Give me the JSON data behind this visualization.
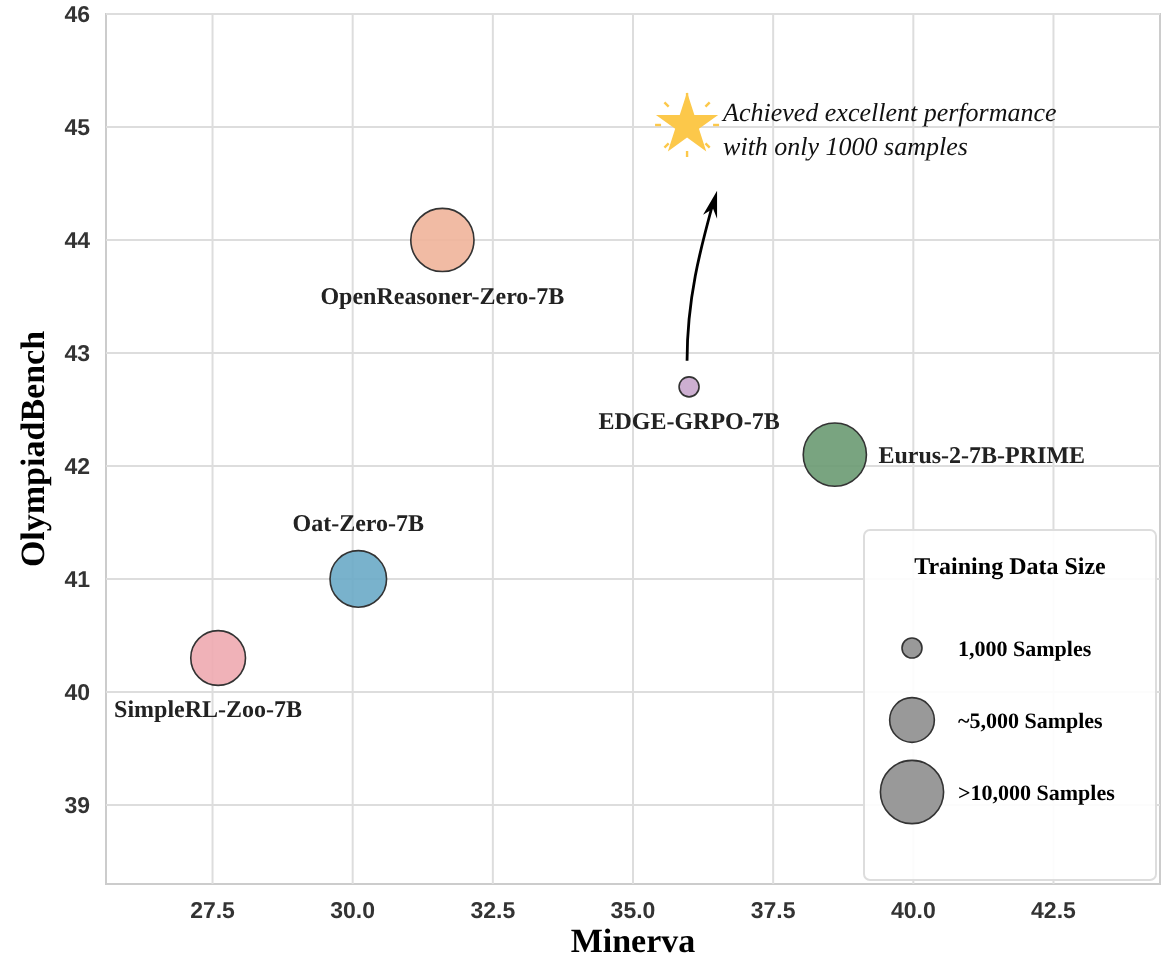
{
  "chart_data": {
    "type": "bubble",
    "xlabel": "Minerva",
    "ylabel": "OlympiadBench",
    "xlim": [
      25.6,
      44.4
    ],
    "ylim": [
      38.3,
      46
    ],
    "xticks": [
      {
        "value": 27.5,
        "label": "27.5"
      },
      {
        "value": 30,
        "label": "30.0"
      },
      {
        "value": 32.5,
        "label": "32.5"
      },
      {
        "value": 35,
        "label": "35.0"
      },
      {
        "value": 37.5,
        "label": "37.5"
      },
      {
        "value": 40,
        "label": "40.0"
      },
      {
        "value": 42.5,
        "label": "42.5"
      }
    ],
    "yticks": [
      39,
      40,
      41,
      42,
      43,
      44,
      45,
      46
    ],
    "grid": true,
    "legend": "bottom right",
    "legend_title": "Training Data Size",
    "size_legend": [
      {
        "value": 1000,
        "label": "1,000 Samples"
      },
      {
        "value": 5000,
        "label": "~5,000 Samples"
      },
      {
        "value": 10000,
        "label": ">10,000 Samples"
      }
    ],
    "series": [
      {
        "name": "SimpleRL-Zoo-7B",
        "color": "#eeaab0",
        "x": [
          27.6
        ],
        "values": [
          40.3
        ],
        "sizes": [
          7500
        ]
      },
      {
        "name": "Oat-Zero-7B",
        "color": "#6aaac6",
        "x": [
          30.1
        ],
        "values": [
          41.0
        ],
        "sizes": [
          8000
        ]
      },
      {
        "name": "OpenReasoner-Zero-7B",
        "color": "#f0b49a",
        "x": [
          31.6
        ],
        "values": [
          44.0
        ],
        "sizes": [
          10000
        ]
      },
      {
        "name": "EDGE-GRPO-7B",
        "color": "#c8a6cc",
        "x": [
          36.0
        ],
        "values": [
          42.7
        ],
        "sizes": [
          1000
        ]
      },
      {
        "name": "Eurus-2-7B-PRIME",
        "color": "#6a9a72",
        "x": [
          38.6
        ],
        "values": [
          42.1
        ],
        "sizes": [
          10000
        ]
      }
    ],
    "annotations": [
      "Achieved excellent performance",
      "with only 1000 samples"
    ]
  }
}
